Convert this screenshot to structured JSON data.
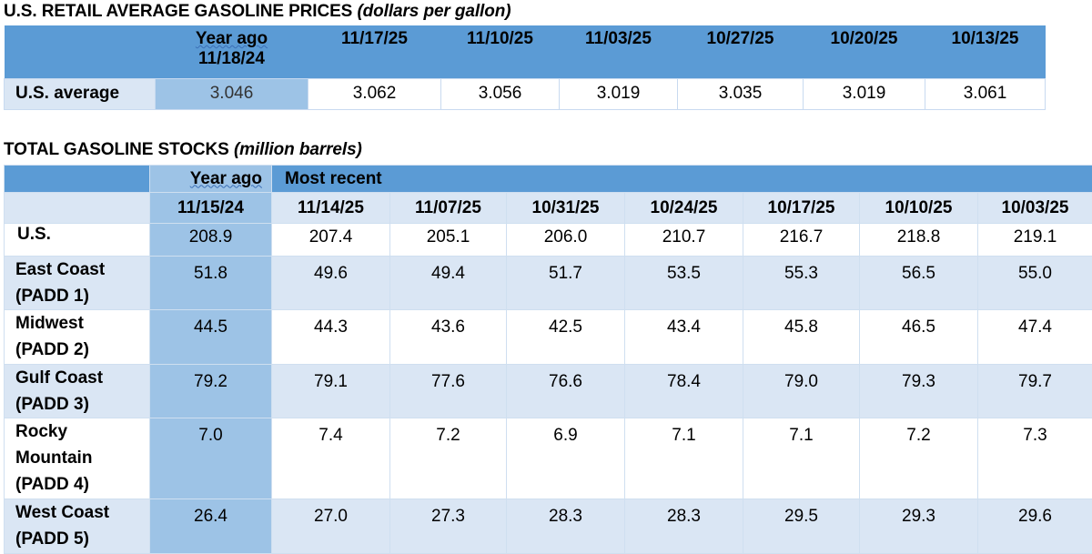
{
  "retail": {
    "title_main": "U.S. RETAIL AVERAGE GASOLINE PRICES",
    "title_unit": "(dollars per gallon)",
    "year_ago_label": "Year ago",
    "year_ago_date": "11/18/24",
    "dates": [
      "11/17/25",
      "11/10/25",
      "11/03/25",
      "10/27/25",
      "10/20/25",
      "10/13/25"
    ],
    "row_label": "U.S. average",
    "year_ago_value": "3.046",
    "values": [
      "3.062",
      "3.056",
      "3.019",
      "3.035",
      "3.019",
      "3.061"
    ]
  },
  "stocks": {
    "title_main": "TOTAL GASOLINE STOCKS",
    "title_unit": "(million barrels)",
    "year_ago_label": "Year ago",
    "most_recent_label": "Most recent",
    "year_ago_date": "11/15/24",
    "dates": [
      "11/14/25",
      "11/07/25",
      "10/31/25",
      "10/24/25",
      "10/17/25",
      "10/10/25",
      "10/03/25"
    ],
    "rows": [
      {
        "label": "U.S.",
        "year_ago": "208.9",
        "values": [
          "207.4",
          "205.1",
          "206.0",
          "210.7",
          "216.7",
          "218.8",
          "219.1"
        ]
      },
      {
        "label_l1": "East Coast",
        "label_l2": "(PADD 1)",
        "year_ago": "51.8",
        "values": [
          "49.6",
          "49.4",
          "51.7",
          "53.5",
          "55.3",
          "56.5",
          "55.0"
        ]
      },
      {
        "label_l1": "Midwest",
        "label_l2": "(PADD 2)",
        "year_ago": "44.5",
        "values": [
          "44.3",
          "43.6",
          "42.5",
          "43.4",
          "45.8",
          "46.5",
          "47.4"
        ]
      },
      {
        "label_l1": "Gulf Coast",
        "label_l2": "(PADD 3)",
        "year_ago": "79.2",
        "values": [
          "79.1",
          "77.6",
          "76.6",
          "78.4",
          "79.0",
          "79.3",
          "79.7"
        ]
      },
      {
        "label_l1": "Rocky",
        "label_l2": "Mountain",
        "label_l3": "(PADD 4)",
        "year_ago": "7.0",
        "values": [
          "7.4",
          "7.2",
          "6.9",
          "7.1",
          "7.1",
          "7.2",
          "7.3"
        ]
      },
      {
        "label_l1": "West Coast",
        "label_l2": "(PADD 5)",
        "year_ago": "26.4",
        "values": [
          "27.0",
          "27.3",
          "28.3",
          "28.3",
          "29.5",
          "29.3",
          "29.6"
        ]
      }
    ]
  }
}
